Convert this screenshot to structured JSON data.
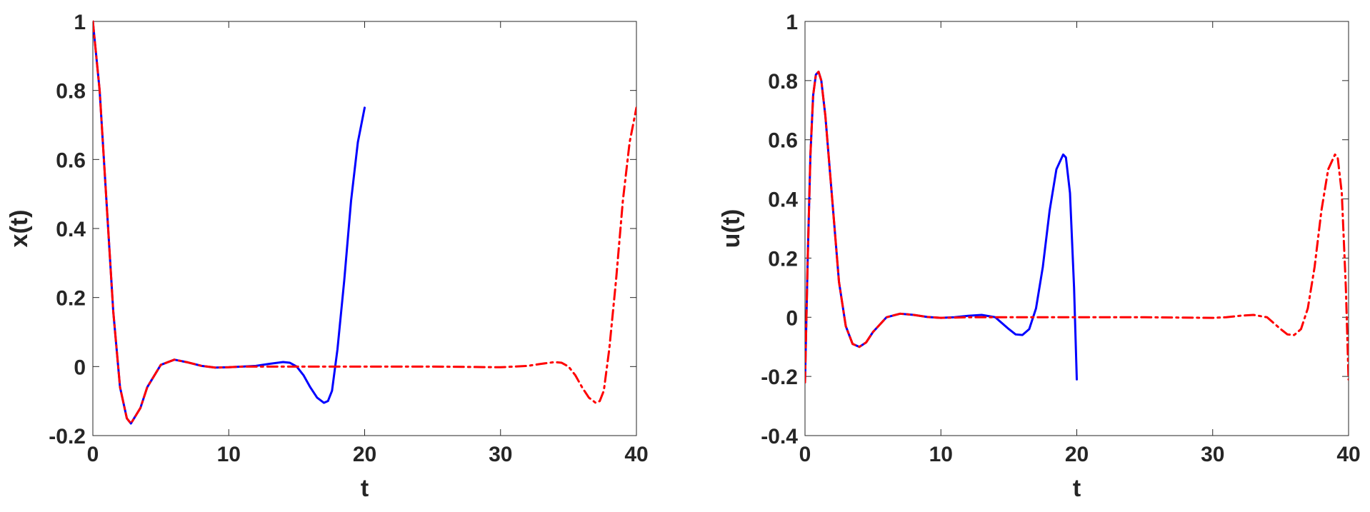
{
  "chart_data": [
    {
      "type": "line",
      "title": "",
      "xlabel": "t",
      "ylabel": "x(t)",
      "xlim": [
        0,
        40
      ],
      "ylim": [
        -0.2,
        1
      ],
      "xticks": [
        0,
        10,
        20,
        30,
        40
      ],
      "yticks": [
        -0.2,
        0,
        0.2,
        0.4,
        0.6,
        0.8,
        1
      ],
      "xtick_labels": [
        "0",
        "10",
        "20",
        "30",
        "40"
      ],
      "ytick_labels": [
        "-0.2",
        "0",
        "0.2",
        "0.4",
        "0.6",
        "0.8",
        "1"
      ],
      "grid": false,
      "legend": "none",
      "series": [
        {
          "color": "#0000ff",
          "style": "solid",
          "x": [
            0,
            0.5,
            1,
            1.5,
            2,
            2.5,
            2.8,
            3.5,
            4,
            5,
            6,
            7,
            8,
            9,
            10,
            11,
            12,
            13,
            14,
            14.5,
            15,
            15.5,
            16,
            16.5,
            17,
            17.3,
            17.6,
            18,
            18.5,
            19,
            19.5,
            20
          ],
          "y": [
            1,
            0.8,
            0.48,
            0.16,
            -0.06,
            -0.15,
            -0.165,
            -0.12,
            -0.06,
            0.005,
            0.02,
            0.012,
            0.002,
            -0.003,
            -0.002,
            0.0,
            0.002,
            0.008,
            0.013,
            0.011,
            0.0,
            -0.025,
            -0.06,
            -0.09,
            -0.105,
            -0.1,
            -0.07,
            0.05,
            0.25,
            0.48,
            0.65,
            0.75
          ]
        },
        {
          "color": "#ff0000",
          "style": "dashdot",
          "x": [
            0,
            0.5,
            1,
            1.5,
            2,
            2.5,
            2.8,
            3.5,
            4,
            5,
            6,
            7,
            8,
            9,
            10,
            11,
            12,
            15,
            20,
            25,
            30,
            31,
            32,
            33,
            34,
            34.5,
            35,
            35.5,
            36,
            36.5,
            37,
            37.3,
            37.6,
            38,
            38.5,
            39,
            39.5,
            40
          ],
          "y": [
            1,
            0.8,
            0.48,
            0.16,
            -0.06,
            -0.15,
            -0.165,
            -0.12,
            -0.06,
            0.005,
            0.02,
            0.012,
            0.002,
            -0.003,
            -0.002,
            0.0,
            0.0,
            0.0,
            0.0,
            0.0,
            -0.002,
            0.0,
            0.002,
            0.008,
            0.013,
            0.011,
            0.0,
            -0.025,
            -0.06,
            -0.09,
            -0.105,
            -0.1,
            -0.07,
            0.05,
            0.25,
            0.48,
            0.65,
            0.75
          ]
        }
      ]
    },
    {
      "type": "line",
      "title": "",
      "xlabel": "t",
      "ylabel": "u(t)",
      "xlim": [
        0,
        40
      ],
      "ylim": [
        -0.4,
        1
      ],
      "xticks": [
        0,
        10,
        20,
        30,
        40
      ],
      "yticks": [
        -0.4,
        -0.2,
        0,
        0.2,
        0.4,
        0.6,
        0.8,
        1
      ],
      "xtick_labels": [
        "0",
        "10",
        "20",
        "30",
        "40"
      ],
      "ytick_labels": [
        "-0.4",
        "-0.2",
        "0",
        "0.2",
        "0.4",
        "0.6",
        "0.8",
        "1"
      ],
      "grid": false,
      "legend": "none",
      "series": [
        {
          "color": "#0000ff",
          "style": "solid",
          "x": [
            0,
            0.2,
            0.4,
            0.6,
            0.8,
            1,
            1.2,
            1.5,
            2,
            2.5,
            3,
            3.5,
            4,
            4.5,
            5,
            6,
            7,
            8,
            9,
            10,
            11,
            12,
            13,
            14,
            15,
            15.5,
            16,
            16.5,
            17,
            17.5,
            18,
            18.5,
            19,
            19.2,
            19.5,
            19.8,
            20
          ],
          "y": [
            -0.22,
            0.2,
            0.55,
            0.75,
            0.82,
            0.83,
            0.8,
            0.68,
            0.4,
            0.12,
            -0.03,
            -0.09,
            -0.1,
            -0.085,
            -0.05,
            0.0,
            0.012,
            0.008,
            0.001,
            -0.002,
            0.0,
            0.005,
            0.008,
            0.0,
            -0.04,
            -0.058,
            -0.06,
            -0.04,
            0.03,
            0.17,
            0.36,
            0.5,
            0.55,
            0.54,
            0.42,
            0.1,
            -0.21
          ]
        },
        {
          "color": "#ff0000",
          "style": "dashdot",
          "x": [
            0,
            0.2,
            0.4,
            0.6,
            0.8,
            1,
            1.2,
            1.5,
            2,
            2.5,
            3,
            3.5,
            4,
            4.5,
            5,
            6,
            7,
            8,
            9,
            10,
            12,
            15,
            20,
            25,
            30,
            31,
            32,
            33,
            34,
            35,
            35.5,
            36,
            36.5,
            37,
            37.5,
            38,
            38.5,
            39,
            39.2,
            39.5,
            39.8,
            40
          ],
          "y": [
            -0.22,
            0.2,
            0.55,
            0.75,
            0.82,
            0.83,
            0.8,
            0.68,
            0.4,
            0.12,
            -0.03,
            -0.09,
            -0.1,
            -0.085,
            -0.05,
            0.0,
            0.012,
            0.008,
            0.001,
            -0.002,
            0.0,
            0.0,
            0.0,
            0.0,
            -0.002,
            0.0,
            0.005,
            0.008,
            0.0,
            -0.04,
            -0.058,
            -0.06,
            -0.04,
            0.03,
            0.17,
            0.36,
            0.5,
            0.55,
            0.54,
            0.42,
            0.1,
            -0.21
          ]
        }
      ]
    }
  ]
}
